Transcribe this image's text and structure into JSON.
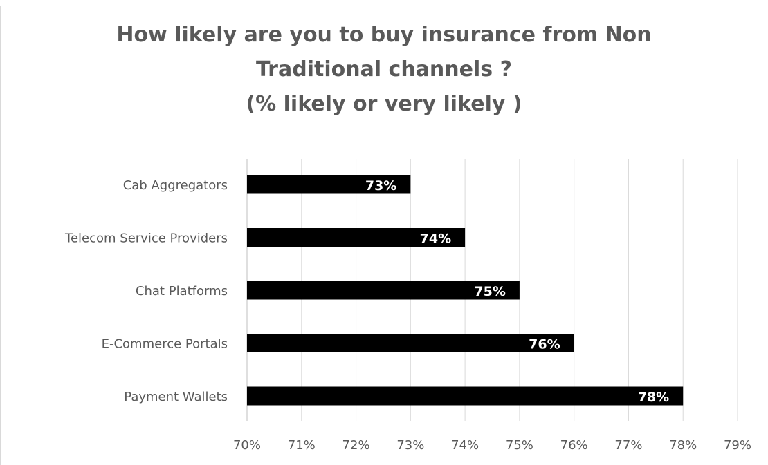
{
  "chart_data": {
    "type": "bar",
    "orientation": "horizontal",
    "title": [
      "How likely are you to buy insurance from Non",
      "Traditional channels ?",
      "(% likely or very likely )"
    ],
    "categories": [
      "Cab Aggregators",
      "Telecom Service Providers",
      "Chat Platforms",
      "E-Commerce Portals",
      "Payment Wallets"
    ],
    "values": [
      73,
      74,
      75,
      76,
      78
    ],
    "data_labels": [
      "73%",
      "74%",
      "75%",
      "76%",
      "78%"
    ],
    "xlim": [
      70,
      79
    ],
    "x_ticks": [
      "70%",
      "71%",
      "72%",
      "73%",
      "74%",
      "75%",
      "76%",
      "77%",
      "78%",
      "79%"
    ],
    "xlabel": "",
    "ylabel": "",
    "grid": "vertical",
    "legend": "none",
    "bar_color": "#000000",
    "gridline_color": "#d9d9d9",
    "text_color": "#595959",
    "label_color": "#ffffff"
  }
}
